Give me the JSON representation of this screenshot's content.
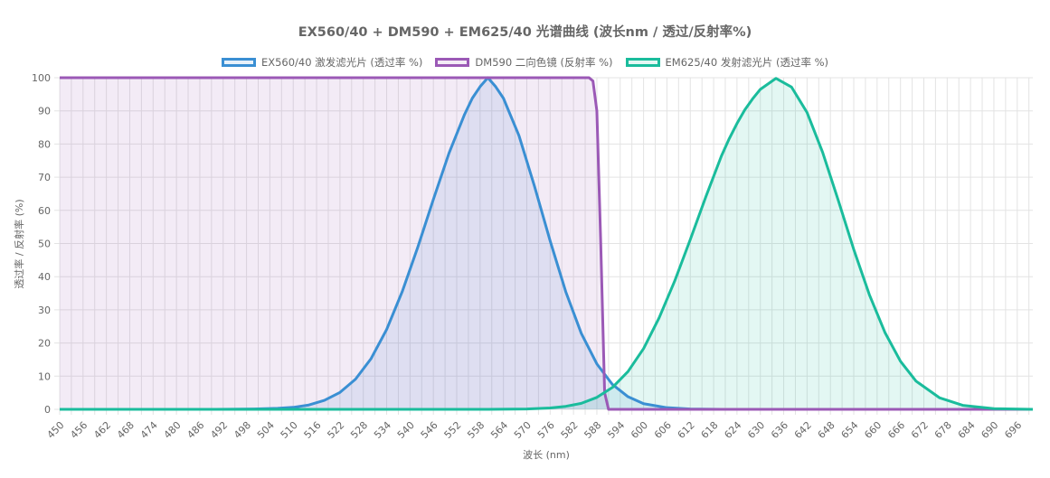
{
  "chart_data": {
    "type": "line",
    "title": "EX560/40 + DM590 + EM625/40 光谱曲线 (波长nm / 透过/反射率%)",
    "xlabel": "波长 (nm)",
    "ylabel": "透过率 / 反射率 (%)",
    "xlim": [
      450,
      700
    ],
    "ylim": [
      0,
      100
    ],
    "yticks": [
      0,
      10,
      20,
      30,
      40,
      50,
      60,
      70,
      80,
      90,
      100
    ],
    "xticks": [
      450,
      456,
      462,
      468,
      474,
      480,
      486,
      492,
      498,
      504,
      510,
      516,
      522,
      528,
      534,
      540,
      546,
      552,
      558,
      564,
      570,
      576,
      582,
      588,
      594,
      600,
      606,
      612,
      618,
      624,
      630,
      636,
      642,
      648,
      654,
      660,
      666,
      672,
      678,
      684,
      690,
      696
    ],
    "grid": true,
    "legend_position": "top",
    "series": [
      {
        "name": "EX560/40 激发滤光片 (透过率 %)",
        "color": "#3a8fd3",
        "fill": "rgba(58,143,211,0.12)",
        "x": [
          450,
          490,
          500,
          506,
          510,
          514,
          518,
          522,
          526,
          530,
          534,
          538,
          542,
          546,
          550,
          554,
          556,
          558,
          560,
          562,
          564,
          568,
          572,
          576,
          580,
          584,
          588,
          592,
          596,
          600,
          606,
          612,
          620,
          640,
          700
        ],
        "y": [
          0,
          0,
          0.1,
          0.3,
          0.6,
          1.3,
          2.7,
          5.1,
          9.1,
          15.3,
          24.1,
          35.5,
          48.9,
          63.3,
          77.2,
          88.9,
          93.8,
          97.3,
          100,
          97.3,
          93.8,
          82.5,
          67.2,
          50.8,
          35.5,
          22.9,
          13.7,
          7.5,
          3.8,
          1.7,
          0.5,
          0.1,
          0,
          0,
          0
        ]
      },
      {
        "name": "DM590 二向色镜 (反射率 %)",
        "color": "#9b59b6",
        "fill": "rgba(155,89,182,0.12)",
        "x": [
          450,
          586,
          587,
          588,
          589,
          590,
          591,
          700
        ],
        "y": [
          100,
          100,
          99,
          90,
          50,
          5,
          0,
          0
        ]
      },
      {
        "name": "EM625/40 发射滤光片 (透过率 %)",
        "color": "#1abc9c",
        "fill": "rgba(26,188,156,0.12)",
        "x": [
          450,
          560,
          570,
          576,
          580,
          584,
          588,
          592,
          596,
          600,
          604,
          608,
          612,
          616,
          620,
          622,
          624,
          626,
          628,
          630,
          634,
          638,
          642,
          646,
          650,
          654,
          658,
          662,
          666,
          670,
          676,
          682,
          690,
          700
        ],
        "y": [
          0,
          0,
          0.1,
          0.4,
          0.9,
          1.8,
          3.6,
          6.6,
          11.4,
          18.3,
          27.6,
          38.7,
          51.2,
          64.1,
          76.4,
          81.6,
          86.2,
          90.3,
          93.6,
          96.5,
          99.8,
          97.2,
          89.5,
          77.5,
          63.1,
          48.2,
          34.6,
          23.2,
          14.5,
          8.5,
          3.5,
          1.2,
          0.2,
          0
        ]
      }
    ]
  }
}
